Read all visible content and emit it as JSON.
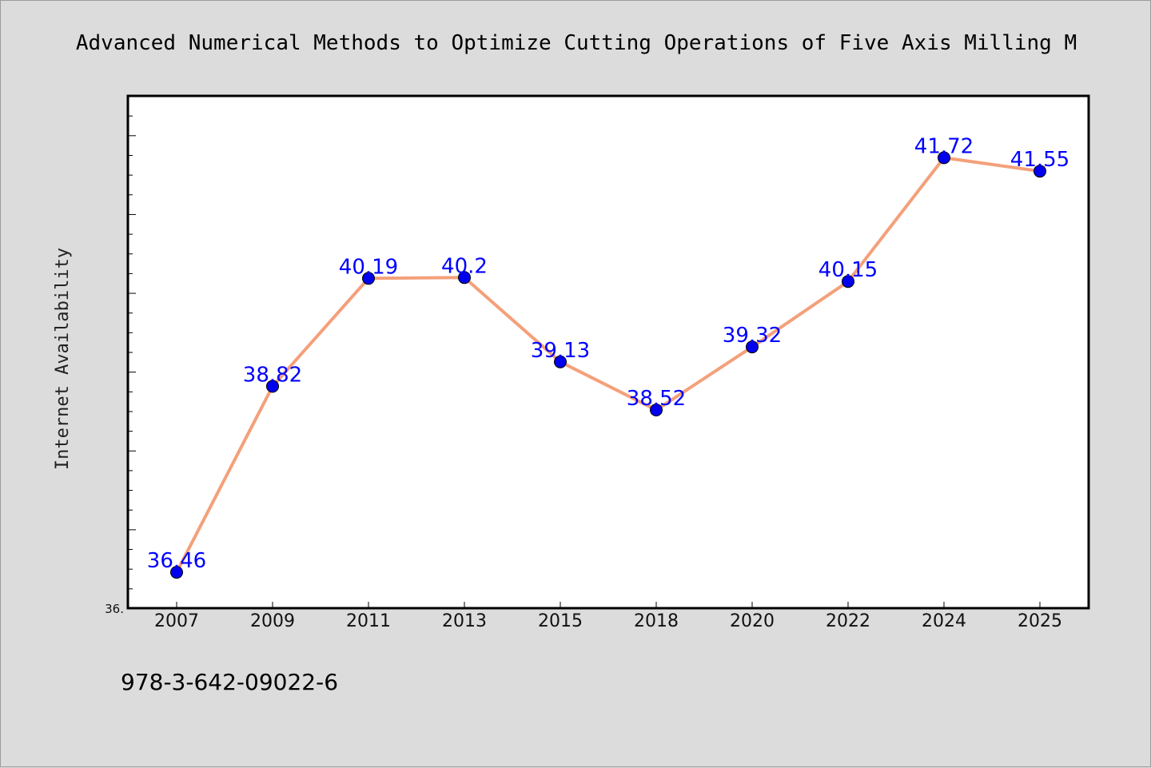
{
  "chart_data": {
    "type": "line",
    "title": "Advanced Numerical Methods to Optimize Cutting Operations of Five Axis Milling M",
    "xlabel": "",
    "ylabel": "Internet Availability",
    "categories": [
      "2007",
      "2009",
      "2011",
      "2013",
      "2015",
      "2018",
      "2020",
      "2022",
      "2024",
      "2025"
    ],
    "series": [
      {
        "values": [
          36.46,
          38.82,
          40.19,
          40.2,
          39.13,
          38.52,
          39.32,
          40.15,
          41.72,
          41.55
        ]
      }
    ],
    "data_labels": [
      "36.46",
      "38.82",
      "40.19",
      "40.2",
      "39.13",
      "38.52",
      "39.32",
      "40.15",
      "41.72",
      "41.55"
    ],
    "ytick_labels": [
      "36."
    ],
    "ylim": [
      36.0,
      42.5
    ],
    "grid": false,
    "line_color": "#f4a07a",
    "marker_color": "#0000ee",
    "label_color": "#0000ff"
  },
  "footer": {
    "isbn": "978-3-642-09022-6"
  }
}
